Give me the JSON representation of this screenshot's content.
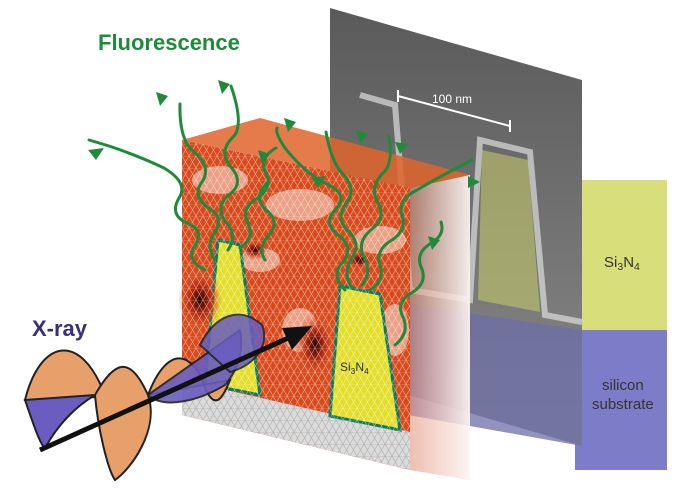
{
  "labels": {
    "fluorescence": "Fluorescence",
    "xray": "X-ray",
    "scalebar": "100 nm",
    "si3n4_side": {
      "prefix": "Si",
      "sub1": "3",
      "mid": "N",
      "sub2": "4"
    },
    "si3n4_inner": {
      "prefix": "Si",
      "sub1": "3",
      "mid": "N",
      "sub2": "4"
    },
    "substrate_line1": "silicon",
    "substrate_line2": "substrate"
  },
  "colors": {
    "fluorescence": "#1f8a3c",
    "xray_text": "#3a2f7a",
    "xray_wave_orange": "#e8a06a",
    "xray_wave_purple": "#6a5cc0",
    "field_red": "#d84a1c",
    "field_yellow": "#e3de2a",
    "sem_gray": "#7a7a7a",
    "si3n4_panel": "#d7de7a",
    "substrate_panel": "#7c7cc8"
  }
}
